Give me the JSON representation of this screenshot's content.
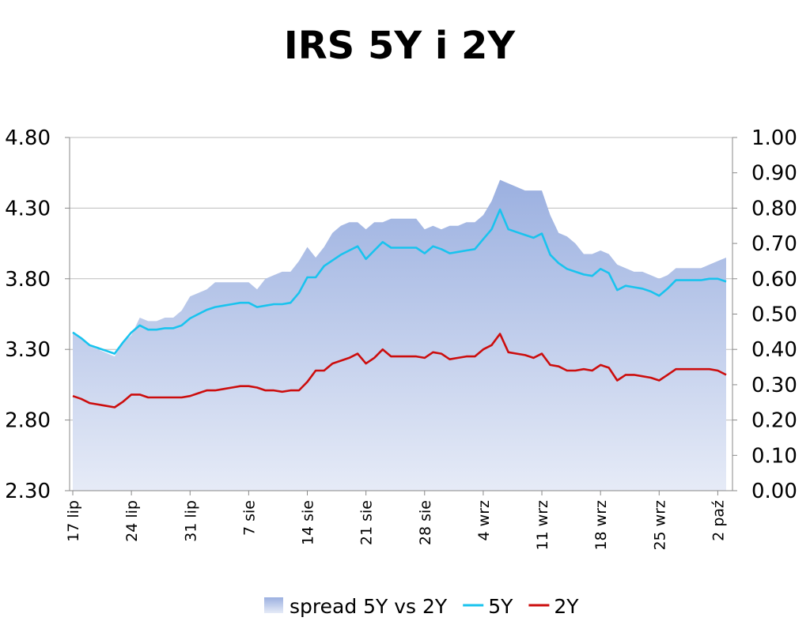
{
  "chart_data": {
    "type": "line",
    "title": "IRS 5Y i 2Y",
    "x_tick_labels": [
      "17 lip",
      "24 lip",
      "31 lip",
      "7 sie",
      "14 sie",
      "21 sie",
      "28 sie",
      "4 wrz",
      "11 wrz",
      "18 wrz",
      "25 wrz",
      "2 paź"
    ],
    "x_tick_days": [
      0,
      7,
      14,
      21,
      28,
      35,
      42,
      49,
      56,
      63,
      70,
      77
    ],
    "y_left": {
      "ticks": [
        "2.30",
        "2.80",
        "3.30",
        "3.80",
        "4.30",
        "4.80"
      ],
      "lim": [
        2.3,
        4.8
      ]
    },
    "y_right": {
      "ticks": [
        "0.00",
        "0.10",
        "0.20",
        "0.30",
        "0.40",
        "0.50",
        "0.60",
        "0.70",
        "0.80",
        "0.90",
        "1.00"
      ],
      "lim": [
        0,
        1
      ]
    },
    "grid": true,
    "legend_position": "bottom",
    "x": [
      0,
      1,
      2,
      3,
      4,
      5,
      6,
      7,
      8,
      9,
      10,
      11,
      12,
      13,
      14,
      15,
      16,
      17,
      18,
      19,
      20,
      21,
      22,
      23,
      24,
      25,
      26,
      27,
      28,
      29,
      30,
      31,
      32,
      33,
      34,
      35,
      36,
      37,
      38,
      39,
      40,
      41,
      42,
      43,
      44,
      45,
      46,
      47,
      48,
      49,
      50,
      51,
      52,
      53,
      54,
      55,
      56,
      57,
      58,
      59,
      60,
      61,
      62,
      63,
      64,
      65,
      66,
      67,
      68,
      69,
      70,
      71,
      72,
      73,
      74,
      75,
      76,
      77,
      78
    ],
    "series": [
      {
        "name": "5Y",
        "axis": "left",
        "color": "#19c3ee",
        "values": [
          3.42,
          3.38,
          3.33,
          3.31,
          3.29,
          3.27,
          3.35,
          3.42,
          3.47,
          3.44,
          3.44,
          3.45,
          3.45,
          3.47,
          3.52,
          3.55,
          3.58,
          3.6,
          3.61,
          3.62,
          3.63,
          3.63,
          3.6,
          3.61,
          3.62,
          3.62,
          3.63,
          3.7,
          3.81,
          3.81,
          3.89,
          3.93,
          3.97,
          4.0,
          4.03,
          3.94,
          4.0,
          4.06,
          4.02,
          4.02,
          4.02,
          4.02,
          3.98,
          4.03,
          4.01,
          3.98,
          3.99,
          4.0,
          4.01,
          4.08,
          4.15,
          4.29,
          4.15,
          4.13,
          4.11,
          4.09,
          4.12,
          3.97,
          3.91,
          3.87,
          3.85,
          3.83,
          3.82,
          3.87,
          3.84,
          3.72,
          3.75,
          3.74,
          3.73,
          3.71,
          3.68,
          3.73,
          3.79,
          3.79,
          3.79,
          3.79,
          3.8,
          3.8,
          3.78
        ]
      },
      {
        "name": "2Y",
        "axis": "left",
        "color": "#cc0d0d",
        "values": [
          2.97,
          2.95,
          2.92,
          2.91,
          2.9,
          2.89,
          2.93,
          2.98,
          2.98,
          2.96,
          2.96,
          2.96,
          2.96,
          2.96,
          2.97,
          2.99,
          3.01,
          3.01,
          3.02,
          3.03,
          3.04,
          3.04,
          3.03,
          3.01,
          3.01,
          3.0,
          3.01,
          3.01,
          3.07,
          3.15,
          3.15,
          3.2,
          3.22,
          3.24,
          3.27,
          3.2,
          3.24,
          3.3,
          3.25,
          3.25,
          3.25,
          3.25,
          3.24,
          3.28,
          3.27,
          3.23,
          3.24,
          3.25,
          3.25,
          3.3,
          3.33,
          3.41,
          3.28,
          3.27,
          3.26,
          3.24,
          3.27,
          3.19,
          3.18,
          3.15,
          3.15,
          3.16,
          3.15,
          3.19,
          3.17,
          3.08,
          3.12,
          3.12,
          3.11,
          3.1,
          3.08,
          3.12,
          3.16,
          3.16,
          3.16,
          3.16,
          3.16,
          3.15,
          3.12
        ]
      },
      {
        "name": "spread 5Y vs 2Y",
        "axis": "right",
        "type": "area",
        "color_top": "#9bb0e0",
        "color_bottom": "#e6ebf7",
        "values": [
          0.45,
          0.43,
          0.41,
          0.4,
          0.39,
          0.38,
          0.42,
          0.44,
          0.49,
          0.48,
          0.48,
          0.49,
          0.49,
          0.51,
          0.55,
          0.56,
          0.57,
          0.59,
          0.59,
          0.59,
          0.59,
          0.59,
          0.57,
          0.6,
          0.61,
          0.62,
          0.62,
          0.65,
          0.69,
          0.66,
          0.69,
          0.73,
          0.75,
          0.76,
          0.76,
          0.74,
          0.76,
          0.76,
          0.77,
          0.77,
          0.77,
          0.77,
          0.74,
          0.75,
          0.74,
          0.75,
          0.75,
          0.76,
          0.76,
          0.78,
          0.82,
          0.88,
          0.87,
          0.86,
          0.85,
          0.85,
          0.85,
          0.78,
          0.73,
          0.72,
          0.7,
          0.67,
          0.67,
          0.68,
          0.67,
          0.64,
          0.63,
          0.62,
          0.62,
          0.61,
          0.6,
          0.61,
          0.63,
          0.63,
          0.63,
          0.63,
          0.64,
          0.65,
          0.66
        ]
      }
    ]
  },
  "legend": [
    {
      "label": "spread 5Y vs 2Y",
      "kind": "area"
    },
    {
      "label": "5Y",
      "kind": "line",
      "color": "#19c3ee"
    },
    {
      "label": "2Y",
      "kind": "line",
      "color": "#cc0d0d"
    }
  ]
}
